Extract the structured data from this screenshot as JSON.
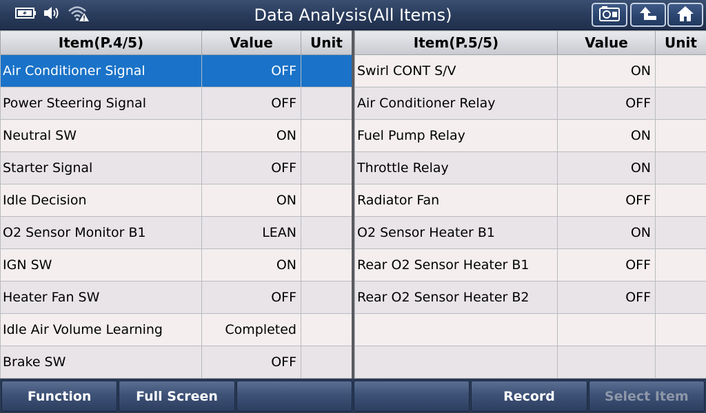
{
  "header": {
    "title": "Data Analysis(All Items)"
  },
  "icons": {
    "battery": "battery-icon",
    "volume": "volume-icon",
    "signal": "wifi-warning-icon",
    "screenshot": "camera-icon",
    "back": "back-arrow-icon",
    "home": "home-icon"
  },
  "left_table": {
    "col_item": "Item(P.4/5)",
    "col_value": "Value",
    "col_unit": "Unit",
    "rows": [
      {
        "item": "Air Conditioner Signal",
        "value": "OFF",
        "unit": ""
      },
      {
        "item": "Power Steering Signal",
        "value": "OFF",
        "unit": ""
      },
      {
        "item": "Neutral SW",
        "value": "ON",
        "unit": ""
      },
      {
        "item": "Starter Signal",
        "value": "OFF",
        "unit": ""
      },
      {
        "item": "Idle Decision",
        "value": "ON",
        "unit": ""
      },
      {
        "item": "O2 Sensor Monitor B1",
        "value": "LEAN",
        "unit": ""
      },
      {
        "item": "IGN SW",
        "value": "ON",
        "unit": ""
      },
      {
        "item": "Heater Fan SW",
        "value": "OFF",
        "unit": ""
      },
      {
        "item": "Idle Air Volume Learning",
        "value": "Completed",
        "unit": ""
      },
      {
        "item": "Brake SW",
        "value": "OFF",
        "unit": ""
      }
    ]
  },
  "right_table": {
    "col_item": "Item(P.5/5)",
    "col_value": "Value",
    "col_unit": "Unit",
    "rows": [
      {
        "item": "Swirl CONT S/V",
        "value": "ON",
        "unit": ""
      },
      {
        "item": "Air Conditioner Relay",
        "value": "OFF",
        "unit": ""
      },
      {
        "item": "Fuel Pump Relay",
        "value": "ON",
        "unit": ""
      },
      {
        "item": "Throttle Relay",
        "value": "ON",
        "unit": ""
      },
      {
        "item": "Radiator Fan",
        "value": "OFF",
        "unit": ""
      },
      {
        "item": "O2 Sensor Heater B1",
        "value": "ON",
        "unit": ""
      },
      {
        "item": "Rear O2 Sensor Heater B1",
        "value": "OFF",
        "unit": ""
      },
      {
        "item": "Rear O2 Sensor Heater B2",
        "value": "OFF",
        "unit": ""
      },
      {
        "item": "",
        "value": "",
        "unit": ""
      },
      {
        "item": "",
        "value": "",
        "unit": ""
      }
    ]
  },
  "bottom_bar": {
    "function": "Function",
    "full_screen": "Full Screen",
    "empty1": "",
    "empty2": "",
    "record": "Record",
    "select_item": "Select Item"
  },
  "colors": {
    "selected_row": "#1a73c8",
    "title_bar": "#2a3c5c",
    "disabled_text": "#8d97a8"
  }
}
